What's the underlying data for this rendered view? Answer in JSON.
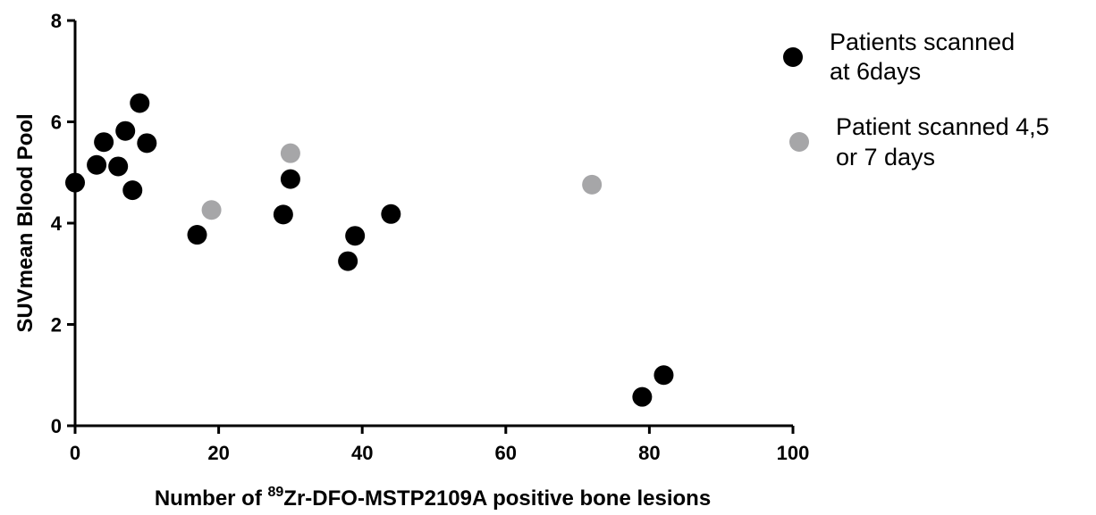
{
  "chart_data": {
    "type": "scatter",
    "xlabel_prefix": "Number of ",
    "xlabel_sup": "89",
    "xlabel_main": "Zr-DFO-MSTP2109A positive bone lesions",
    "ylabel": "SUVmean Blood Pool",
    "xlim": [
      0,
      100
    ],
    "ylim": [
      0,
      8
    ],
    "xticks": [
      "0",
      "20",
      "40",
      "60",
      "80",
      "100"
    ],
    "yticks": [
      "0",
      "2",
      "4",
      "6",
      "8"
    ],
    "grid": false,
    "legend_position": "right",
    "series": [
      {
        "name_lines": [
          "Patients scanned",
          "at  6days"
        ],
        "color": "#000000",
        "points": [
          [
            0,
            4.8
          ],
          [
            3,
            5.15
          ],
          [
            4,
            5.6
          ],
          [
            6,
            5.12
          ],
          [
            7,
            5.82
          ],
          [
            8,
            4.65
          ],
          [
            9,
            6.37
          ],
          [
            10,
            5.58
          ],
          [
            17,
            3.77
          ],
          [
            29,
            4.17
          ],
          [
            30,
            4.87
          ],
          [
            38,
            3.25
          ],
          [
            39,
            3.75
          ],
          [
            44,
            4.18
          ],
          [
            79,
            0.57
          ],
          [
            82,
            1.0
          ]
        ]
      },
      {
        "name_lines": [
          "Patient scanned 4,5",
          "or 7 days"
        ],
        "color": "#a6a6a8",
        "points": [
          [
            19,
            4.26
          ],
          [
            30,
            5.38
          ],
          [
            72,
            4.76
          ]
        ]
      }
    ]
  }
}
